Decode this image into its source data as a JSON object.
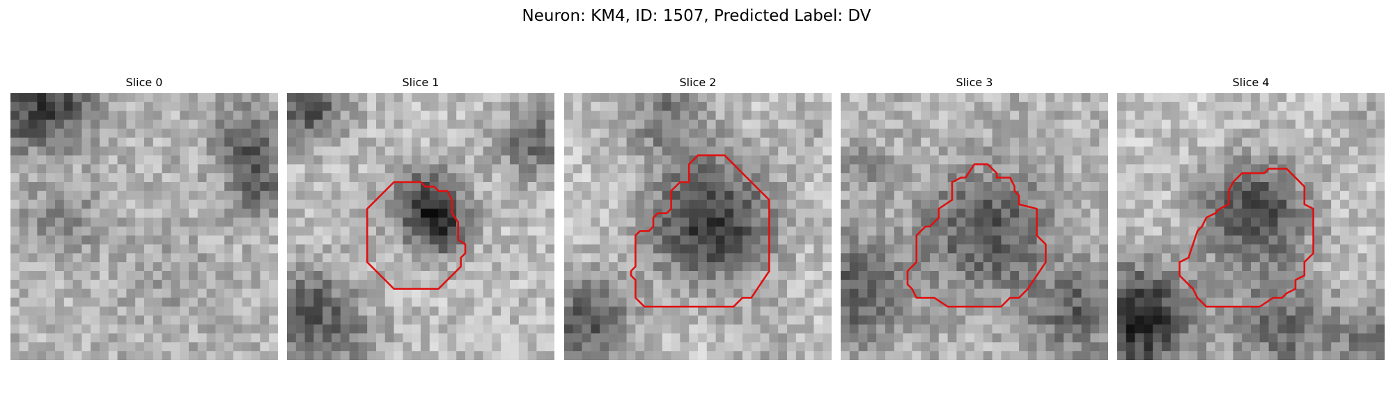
{
  "figure": {
    "title": "Neuron: KM4, ID: 1507, Predicted Label: DV"
  },
  "panels": [
    {
      "title": "Slice 0",
      "has_contour": false,
      "seed": 11
    },
    {
      "title": "Slice 1",
      "has_contour": true,
      "seed": 23
    },
    {
      "title": "Slice 2",
      "has_contour": true,
      "seed": 37
    },
    {
      "title": "Slice 3",
      "has_contour": true,
      "seed": 41
    },
    {
      "title": "Slice 4",
      "has_contour": true,
      "seed": 59
    }
  ],
  "colors": {
    "contour": "#e01010",
    "background": "#ffffff"
  }
}
